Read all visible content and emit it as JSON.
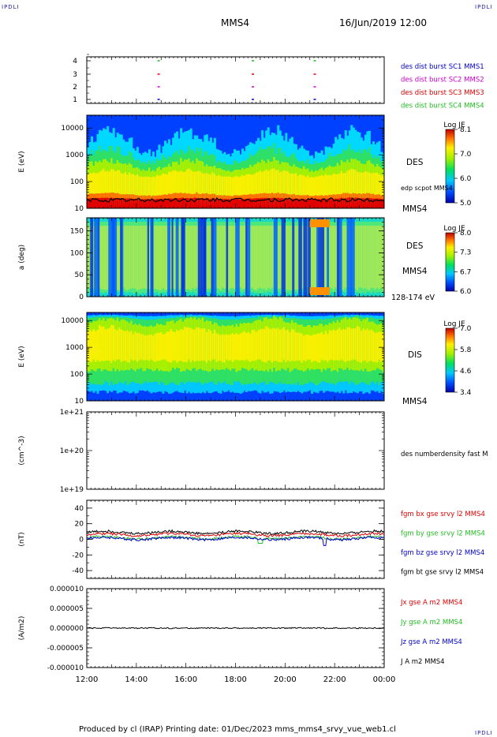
{
  "header": {
    "corner_left": "IPDLI",
    "corner_right": "IPDLI",
    "spacecraft": "MMS4",
    "datetime": "16/Jun/2019 12:00"
  },
  "footer": {
    "text": "Produced by cl (IRAP)   Printing date: 01/Dec/2023   mms_mms4_srvy_vue_web1.cl",
    "corner_bottom_right": "IPDLI"
  },
  "colors": {
    "mms1": "#0000cc",
    "mms2": "#cc00cc",
    "mms3": "#dd0000",
    "mms4": "#22bb22",
    "bx": "#dd0000",
    "by": "#22bb22",
    "bz": "#0000cc",
    "bt": "#000000"
  },
  "time_axis": {
    "ticks": [
      "12:00",
      "14:00",
      "16:00",
      "18:00",
      "20:00",
      "22:00",
      "00:00"
    ]
  },
  "chart_data": [
    {
      "type": "scatter",
      "panel": "burst-availability",
      "yticks": [
        "4",
        "3",
        "2",
        "1"
      ],
      "legend": [
        "des dist burst SC1 MMS1",
        "des dist burst SC2 MMS2",
        "des dist burst SC3 MMS3",
        "des dist burst SC4 MMS4"
      ],
      "bursts_hours": [
        {
          "sc": 4,
          "t": [
            2.9,
            6.7,
            9.2
          ]
        },
        {
          "sc": 3,
          "t": [
            2.9,
            6.7,
            9.2
          ]
        },
        {
          "sc": 2,
          "t": [
            2.9,
            6.7,
            9.2
          ]
        },
        {
          "sc": 1,
          "t": [
            2.9,
            6.7,
            9.2
          ]
        }
      ]
    },
    {
      "type": "heatmap",
      "panel": "des-energy-spectrogram",
      "ylabel": "E (eV)",
      "yscale": "log",
      "ylim": [
        10,
        30000
      ],
      "yticks": [
        "10000",
        "1000",
        "100",
        "10"
      ],
      "label": "DES",
      "sublabel": "MMS4",
      "overlay_label": "edp scpot MMS4",
      "colorbar": {
        "title": "Log JE",
        "min": 5.0,
        "max": 8.1,
        "ticks": [
          "8.1",
          "7.0",
          "6.0",
          "5.0"
        ]
      }
    },
    {
      "type": "heatmap",
      "panel": "des-pitch-angle",
      "ylabel": "a (deg)",
      "ylim": [
        0,
        180
      ],
      "yticks": [
        "150",
        "100",
        "50",
        "0"
      ],
      "label": "DES",
      "sublabel": "MMS4",
      "energy_band": "128-174 eV",
      "colorbar": {
        "title": "Log JE",
        "min": 6.0,
        "max": 8.0,
        "ticks": [
          "8.0",
          "7.3",
          "6.7",
          "6.0"
        ]
      }
    },
    {
      "type": "heatmap",
      "panel": "dis-energy-spectrogram",
      "ylabel": "E (eV)",
      "yscale": "log",
      "ylim": [
        10,
        20000
      ],
      "yticks": [
        "10000",
        "1000",
        "100",
        "10"
      ],
      "label": "DIS",
      "sublabel": "MMS4",
      "colorbar": {
        "title": "Log JE",
        "min": 3.4,
        "max": 7.0,
        "ticks": [
          "7.0",
          "5.8",
          "4.6",
          "3.4"
        ]
      }
    },
    {
      "type": "line",
      "panel": "electron-density",
      "ylabel": "(cm^-3)",
      "yscale": "log",
      "ylim": [
        1e+19,
        1e+21
      ],
      "yticks": [
        "1e+21",
        "1e+20",
        "1e+19"
      ],
      "legend": [
        "des numberdensity fast M"
      ]
    },
    {
      "type": "line",
      "panel": "magnetic-field",
      "ylabel": "(nT)",
      "ylim": [
        -50,
        50
      ],
      "yticks": [
        "40",
        "20",
        "0",
        "-20",
        "-40"
      ],
      "legend": [
        "fgm bx gse srvy l2 MMS4",
        "fgm by gse srvy l2 MMS4",
        "fgm bz gse srvy l2 MMS4",
        "fgm bt gse srvy l2 MMS4"
      ],
      "typical": {
        "bx": 6,
        "by": 2,
        "bz": 1,
        "bt": 9
      }
    },
    {
      "type": "line",
      "panel": "current-density",
      "ylabel": "(A/m2)",
      "ylim": [
        -1e-05,
        1e-05
      ],
      "yticks": [
        "0.000010",
        "0.000005",
        "0.000000",
        "-0.000005",
        "-0.000010"
      ],
      "legend": [
        "Jx gse A m2 MMS4",
        "Jy gse A m2 MMS4",
        "Jz gse A m2 MMS4",
        "J A m2 MMS4"
      ]
    }
  ]
}
